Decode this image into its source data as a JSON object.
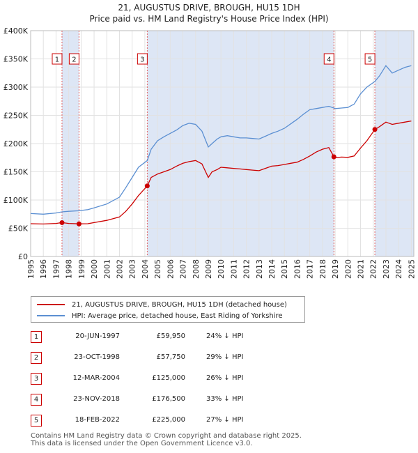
{
  "title_line1": "21, AUGUSTUS DRIVE, BROUGH, HU15 1DH",
  "title_line2": "Price paid vs. HM Land Registry's House Price Index (HPI)",
  "legend": {
    "property_label": "21, AUGUSTUS DRIVE, BROUGH, HU15 1DH (detached house)",
    "hpi_label": "HPI: Average price, detached house, East Riding of Yorkshire"
  },
  "transactions": [
    {
      "num": "1",
      "date": "20-JUN-1997",
      "price": "£59,950",
      "hpi": "24% ↓ HPI"
    },
    {
      "num": "2",
      "date": "23-OCT-1998",
      "price": "£57,750",
      "hpi": "29% ↓ HPI"
    },
    {
      "num": "3",
      "date": "12-MAR-2004",
      "price": "£125,000",
      "hpi": "26% ↓ HPI"
    },
    {
      "num": "4",
      "date": "23-NOV-2018",
      "price": "£176,500",
      "hpi": "33% ↓ HPI"
    },
    {
      "num": "5",
      "date": "18-FEB-2022",
      "price": "£225,000",
      "hpi": "27% ↓ HPI"
    }
  ],
  "footer_line1": "Contains HM Land Registry data © Crown copyright and database right 2025.",
  "footer_line2": "This data is licensed under the Open Government Licence v3.0.",
  "colors": {
    "property": "#cc0000",
    "hpi": "#5b8fd2",
    "shade": "#dde6f5"
  },
  "chart_data": {
    "type": "line",
    "xlim": [
      1995,
      2025.2
    ],
    "ylim": [
      0,
      400000
    ],
    "yticks": [
      0,
      50000,
      100000,
      150000,
      200000,
      250000,
      300000,
      350000,
      400000
    ],
    "ytick_labels": [
      "£0",
      "£50K",
      "£100K",
      "£150K",
      "£200K",
      "£250K",
      "£300K",
      "£350K",
      "£400K"
    ],
    "xticks": [
      1995,
      1996,
      1997,
      1998,
      1999,
      2000,
      2001,
      2002,
      2003,
      2004,
      2005,
      2006,
      2007,
      2008,
      2009,
      2010,
      2011,
      2012,
      2013,
      2014,
      2015,
      2016,
      2017,
      2018,
      2019,
      2020,
      2021,
      2022,
      2023,
      2024,
      2025
    ],
    "grid": true,
    "shaded_periods": [
      [
        1997.47,
        1998.81
      ],
      [
        2004.19,
        2018.9
      ],
      [
        2022.13,
        2025.2
      ]
    ],
    "series": [
      {
        "name": "21, AUGUSTUS DRIVE, BROUGH, HU15 1DH (detached house)",
        "x": [
          1995.0,
          1996.0,
          1997.0,
          1997.47,
          1998.0,
          1998.81,
          1999.5,
          2000.0,
          2001.0,
          2002.0,
          2002.5,
          2003.0,
          2003.5,
          2004.19,
          2004.5,
          2005.0,
          2005.5,
          2006.0,
          2006.5,
          2007.0,
          2007.5,
          2008.0,
          2008.5,
          2009.0,
          2009.3,
          2009.7,
          2010.0,
          2010.5,
          2011.0,
          2011.5,
          2012.0,
          2012.5,
          2013.0,
          2013.5,
          2014.0,
          2014.5,
          2015.0,
          2015.5,
          2016.0,
          2016.5,
          2017.0,
          2017.5,
          2018.0,
          2018.5,
          2018.9,
          2019.0,
          2019.5,
          2020.0,
          2020.5,
          2021.0,
          2021.5,
          2022.13,
          2022.5,
          2023.0,
          2023.5,
          2024.0,
          2024.5,
          2025.0
        ],
        "values": [
          58000,
          57500,
          58500,
          59950,
          58500,
          57750,
          58000,
          60000,
          64000,
          70000,
          80000,
          93000,
          108000,
          125000,
          140000,
          146000,
          150000,
          154000,
          160000,
          165000,
          168000,
          170000,
          164000,
          140000,
          150000,
          154000,
          158000,
          157000,
          156000,
          155000,
          154000,
          153000,
          152000,
          156000,
          160000,
          161000,
          163000,
          165000,
          167000,
          172000,
          178000,
          185000,
          190000,
          193000,
          176500,
          175000,
          176000,
          175500,
          178000,
          192000,
          205000,
          225000,
          230000,
          238000,
          234000,
          236000,
          238000,
          240000
        ]
      },
      {
        "name": "HPI: Average price, detached house, East Riding of Yorkshire",
        "x": [
          1995.0,
          1996.0,
          1997.0,
          1997.47,
          1998.0,
          1998.81,
          1999.5,
          2000.0,
          2001.0,
          2002.0,
          2002.5,
          2003.0,
          2003.5,
          2004.19,
          2004.5,
          2005.0,
          2005.5,
          2006.0,
          2006.5,
          2007.0,
          2007.5,
          2008.0,
          2008.5,
          2009.0,
          2009.3,
          2009.7,
          2010.0,
          2010.5,
          2011.0,
          2011.5,
          2012.0,
          2012.5,
          2013.0,
          2013.5,
          2014.0,
          2014.5,
          2015.0,
          2015.5,
          2016.0,
          2016.5,
          2017.0,
          2017.5,
          2018.0,
          2018.5,
          2018.9,
          2019.0,
          2019.5,
          2020.0,
          2020.5,
          2021.0,
          2021.5,
          2022.13,
          2022.5,
          2023.0,
          2023.5,
          2024.0,
          2024.5,
          2025.0
        ],
        "values": [
          76000,
          75000,
          77000,
          79000,
          80000,
          81000,
          83000,
          86000,
          93000,
          105000,
          122000,
          140000,
          158000,
          170000,
          190000,
          205000,
          212000,
          218000,
          224000,
          232000,
          236000,
          234000,
          222000,
          194000,
          200000,
          208000,
          212000,
          214000,
          212000,
          210000,
          210000,
          209000,
          208000,
          213000,
          218000,
          222000,
          227000,
          235000,
          243000,
          252000,
          260000,
          262000,
          264000,
          266000,
          263000,
          262000,
          263000,
          264000,
          270000,
          288000,
          300000,
          310000,
          320000,
          338000,
          325000,
          330000,
          335000,
          338000
        ]
      }
    ],
    "sales": [
      {
        "label": "1",
        "x": 1997.47,
        "y": 59950
      },
      {
        "label": "2",
        "x": 1998.81,
        "y": 57750
      },
      {
        "label": "3",
        "x": 2004.19,
        "y": 125000
      },
      {
        "label": "4",
        "x": 2018.9,
        "y": 176500
      },
      {
        "label": "5",
        "x": 2022.13,
        "y": 225000
      }
    ]
  }
}
